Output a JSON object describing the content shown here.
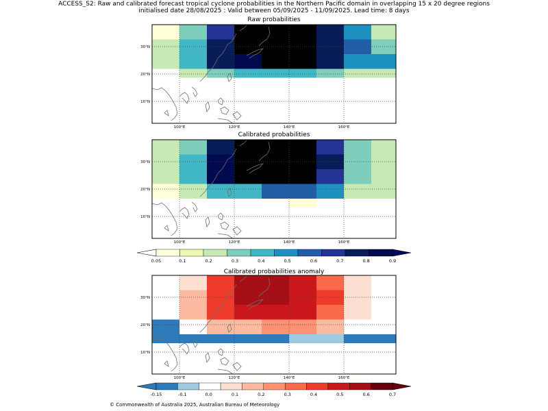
{
  "header": {
    "line1": "ACCESS_S2: Raw and calibrated forecast tropical cyclone probabilities in the Northern Pacific domain in overlapping 15 x 20 degree regions",
    "line2": "initialised date 28/08/2025 :  Valid between 05/09/2025 - 11/09/2025. Lead time: 8 days"
  },
  "map_axes": {
    "x_ticks": [
      "100°E",
      "120°E",
      "140°E",
      "160°E"
    ],
    "y_ticks": [
      "30°N",
      "20°N",
      "10°N"
    ]
  },
  "panels": [
    {
      "title": "Raw probabilities",
      "cmap": "prob",
      "rows": [
        [
          0,
          3,
          7,
          11,
          11,
          11,
          8,
          5,
          2
        ],
        [
          2,
          4,
          8,
          11,
          11,
          11,
          8,
          6,
          3
        ],
        [
          2,
          4,
          8,
          9,
          10,
          10,
          8,
          5,
          5
        ],
        [
          -1,
          2,
          3,
          4,
          4,
          4,
          3,
          2,
          2
        ]
      ]
    },
    {
      "title": "Calibrated probabilities",
      "cmap": "prob",
      "rows": [
        [
          2,
          3,
          8,
          11,
          11,
          10,
          7,
          3,
          2
        ],
        [
          2,
          4,
          9,
          11,
          11,
          10,
          8,
          3,
          2
        ],
        [
          2,
          4,
          9,
          10,
          10,
          10,
          7,
          3,
          2
        ],
        [
          0,
          2,
          4,
          4,
          6,
          6,
          5,
          2,
          2
        ],
        [
          -1,
          -1,
          -1,
          -1,
          -1,
          0,
          -1,
          -1,
          -1
        ]
      ]
    },
    {
      "title": "Calibrated probabilities anomaly",
      "cmap": "anom",
      "rows": [
        [
          2,
          3,
          7,
          9,
          9,
          8,
          6,
          3,
          2
        ],
        [
          2,
          4,
          7,
          9,
          9,
          8,
          7,
          3,
          2
        ],
        [
          2,
          4,
          7,
          8,
          8,
          8,
          6,
          3,
          2
        ],
        [
          0,
          2,
          4,
          4,
          5,
          5,
          4,
          2,
          2
        ],
        [
          0,
          0,
          0,
          0,
          0,
          1,
          1,
          0,
          0
        ]
      ]
    }
  ],
  "colorbars": {
    "prob": {
      "ticks": [
        "0.05",
        "0.1",
        "0.2",
        "0.3",
        "0.4",
        "0.5",
        "0.6",
        "0.7",
        "0.8",
        "0.9"
      ],
      "colors": [
        "#ffffd9",
        "#edf8b1",
        "#c7e9b4",
        "#7fcdbb",
        "#41b6c4",
        "#1d91c0",
        "#225ea8",
        "#253494",
        "#081d58",
        "#010a4f"
      ],
      "under": "#ffffff",
      "over": "#000c5a"
    },
    "anom": {
      "ticks": [
        "-0.15",
        "-0.1",
        "0.0",
        "0.1",
        "0.2",
        "0.3",
        "0.4",
        "0.5",
        "0.6",
        "0.7"
      ],
      "colors": [
        "#2f7ab9",
        "#9ecae1",
        "#ffffff",
        "#fee0d2",
        "#fcbba1",
        "#fc9272",
        "#fb6a4a",
        "#ef3b2c",
        "#cb181d",
        "#a50f15",
        "#67000d"
      ],
      "over": "#67000d"
    }
  },
  "footer": {
    "copyright": "© Commonwealth of Australia 2025, Australian Bureau of Meteorology"
  }
}
